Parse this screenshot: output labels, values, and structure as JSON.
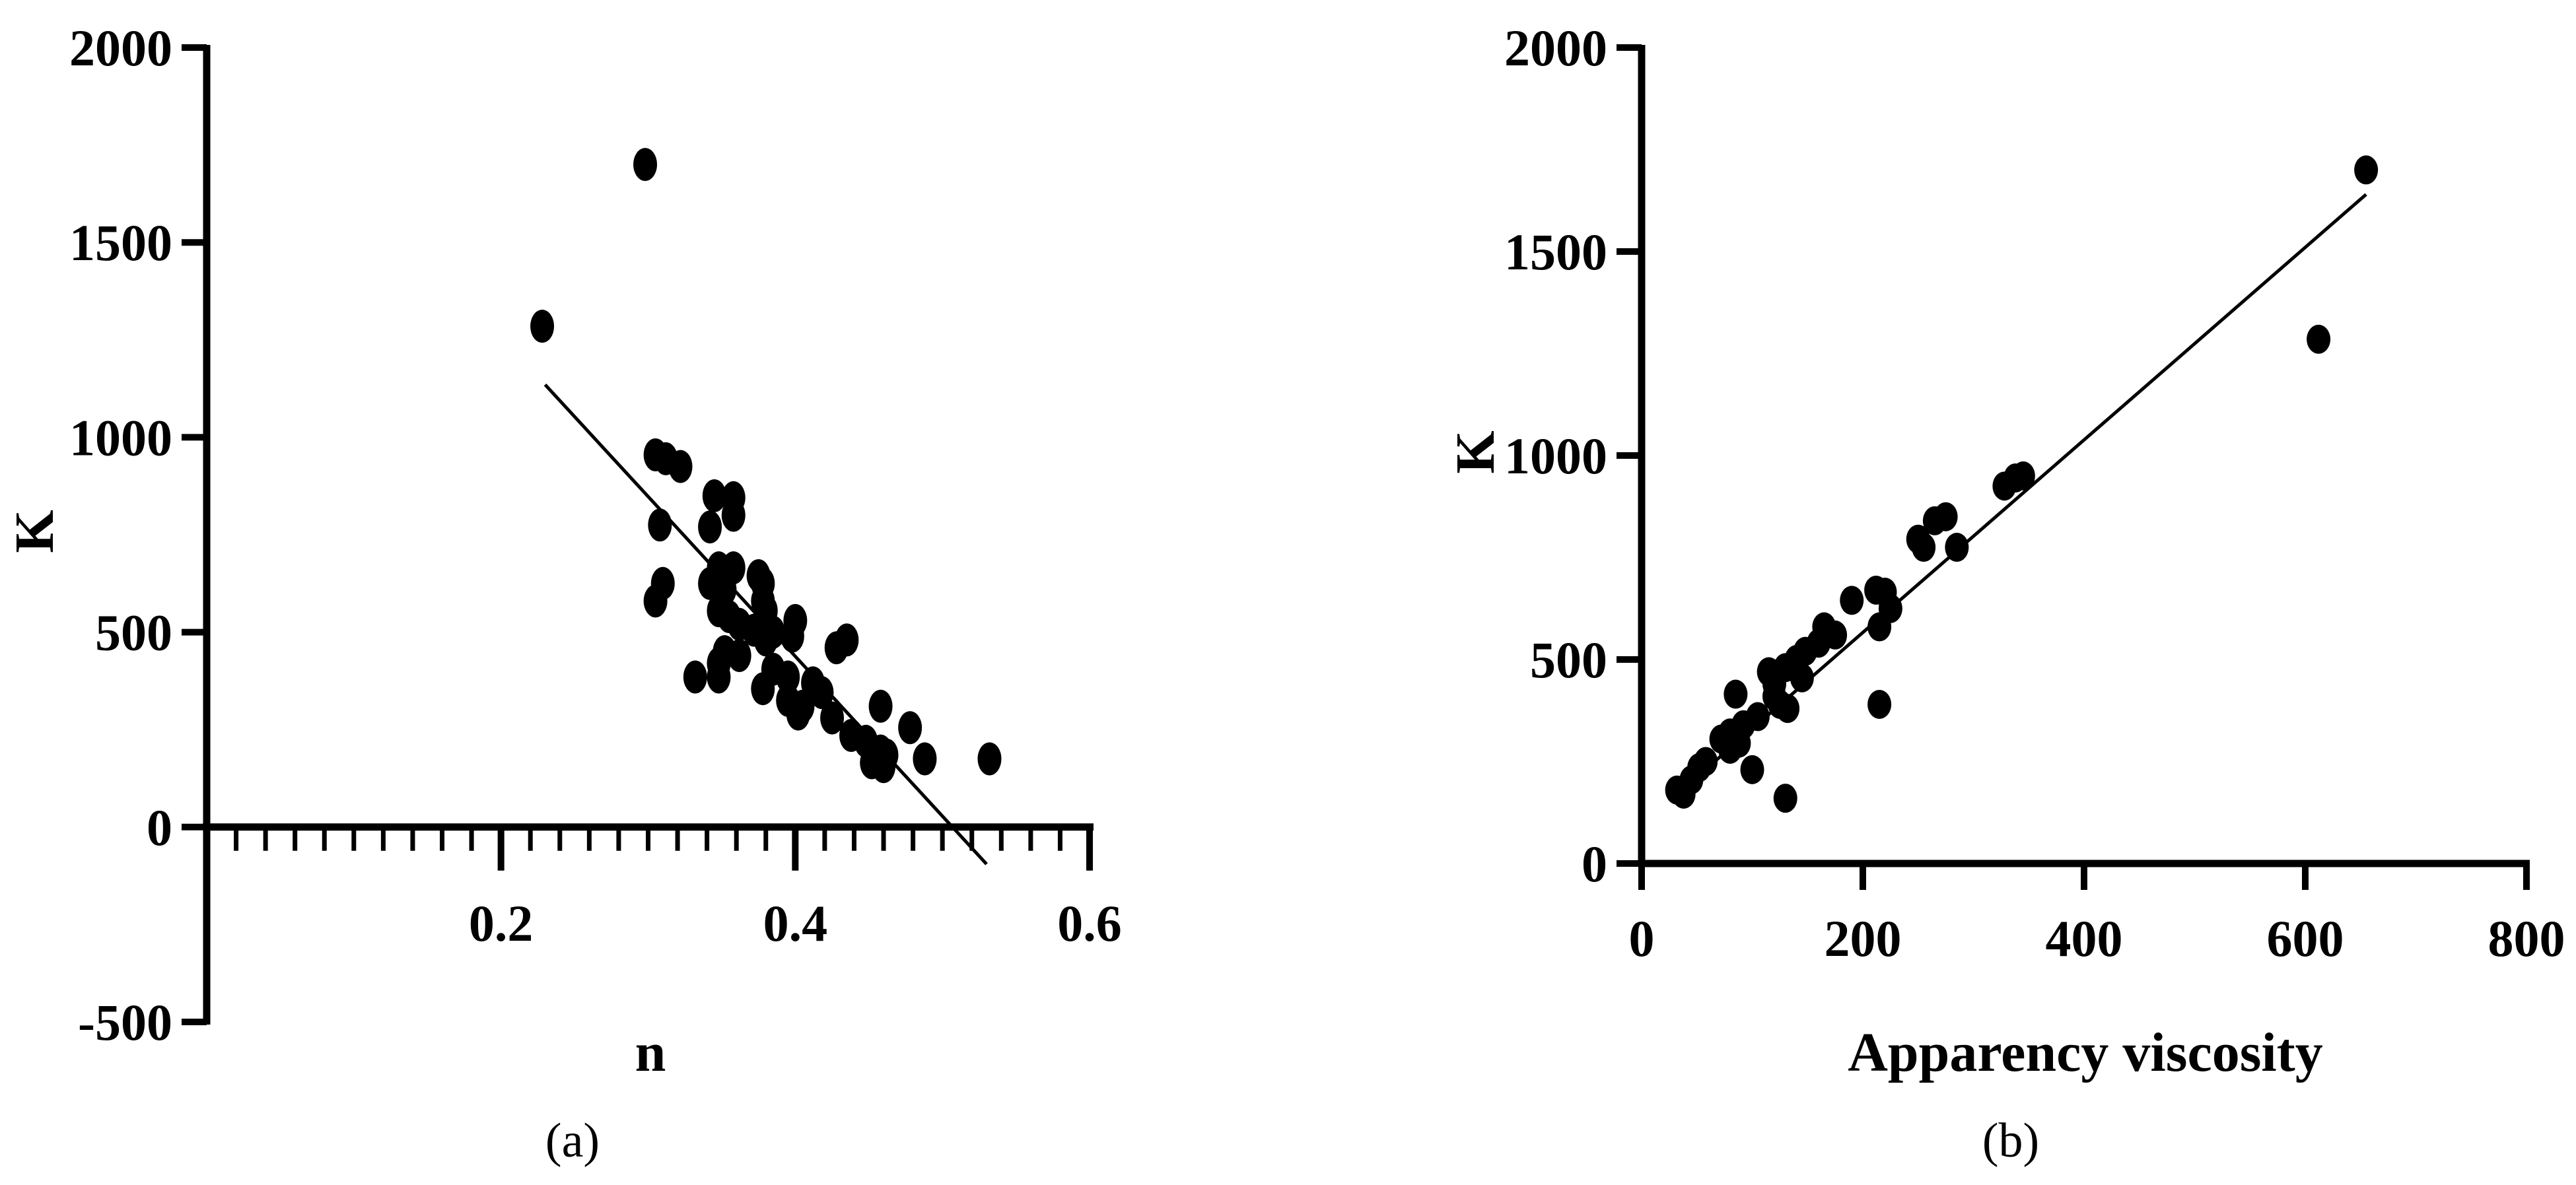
{
  "chart_data": [
    {
      "type": "scatter",
      "panel_label": "(a)",
      "xlabel": "n",
      "ylabel": "K",
      "xlim": [
        0,
        0.6
      ],
      "ylim": [
        -500,
        2000
      ],
      "xticks": [
        "0.2",
        "0.4",
        "0.6"
      ],
      "yticks": [
        "-500",
        "0",
        "500",
        "1000",
        "1500",
        "2000"
      ],
      "minor_xtick_step": 0.02,
      "trendline": {
        "x": [
          0.23,
          0.53
        ],
        "y": [
          1135,
          -95
        ]
      },
      "points": [
        [
          0.298,
          1700
        ],
        [
          0.228,
          1285
        ],
        [
          0.305,
          955
        ],
        [
          0.312,
          945
        ],
        [
          0.322,
          925
        ],
        [
          0.345,
          850
        ],
        [
          0.358,
          845
        ],
        [
          0.358,
          800
        ],
        [
          0.308,
          775
        ],
        [
          0.342,
          770
        ],
        [
          0.348,
          665
        ],
        [
          0.358,
          665
        ],
        [
          0.375,
          645
        ],
        [
          0.378,
          625
        ],
        [
          0.31,
          625
        ],
        [
          0.342,
          625
        ],
        [
          0.352,
          610
        ],
        [
          0.305,
          580
        ],
        [
          0.378,
          580
        ],
        [
          0.38,
          555
        ],
        [
          0.348,
          555
        ],
        [
          0.355,
          540
        ],
        [
          0.4,
          530
        ],
        [
          0.362,
          520
        ],
        [
          0.372,
          505
        ],
        [
          0.385,
          500
        ],
        [
          0.398,
          490
        ],
        [
          0.38,
          480
        ],
        [
          0.435,
          480
        ],
        [
          0.428,
          460
        ],
        [
          0.352,
          450
        ],
        [
          0.362,
          440
        ],
        [
          0.348,
          420
        ],
        [
          0.385,
          405
        ],
        [
          0.332,
          385
        ],
        [
          0.348,
          385
        ],
        [
          0.395,
          385
        ],
        [
          0.412,
          370
        ],
        [
          0.378,
          355
        ],
        [
          0.418,
          345
        ],
        [
          0.395,
          325
        ],
        [
          0.405,
          310
        ],
        [
          0.458,
          310
        ],
        [
          0.402,
          290
        ],
        [
          0.425,
          280
        ],
        [
          0.478,
          255
        ],
        [
          0.438,
          235
        ],
        [
          0.448,
          220
        ],
        [
          0.458,
          195
        ],
        [
          0.462,
          185
        ],
        [
          0.488,
          175
        ],
        [
          0.532,
          175
        ],
        [
          0.452,
          165
        ],
        [
          0.46,
          155
        ]
      ]
    },
    {
      "type": "scatter",
      "panel_label": "(b)",
      "xlabel": "Apparency viscosity",
      "ylabel": "K",
      "xlim": [
        0,
        800
      ],
      "ylim": [
        0,
        2000
      ],
      "xticks": [
        "0",
        "200",
        "400",
        "600",
        "800"
      ],
      "yticks": [
        "0",
        "500",
        "1000",
        "1500",
        "2000"
      ],
      "trendline": {
        "x": [
          30,
          655
        ],
        "y": [
          165,
          1640
        ]
      },
      "points": [
        [
          655,
          1700
        ],
        [
          612,
          1285
        ],
        [
          345,
          950
        ],
        [
          338,
          945
        ],
        [
          328,
          925
        ],
        [
          275,
          850
        ],
        [
          265,
          840
        ],
        [
          250,
          795
        ],
        [
          255,
          775
        ],
        [
          285,
          775
        ],
        [
          212,
          670
        ],
        [
          220,
          665
        ],
        [
          190,
          645
        ],
        [
          225,
          625
        ],
        [
          165,
          580
        ],
        [
          215,
          580
        ],
        [
          175,
          560
        ],
        [
          160,
          540
        ],
        [
          148,
          520
        ],
        [
          140,
          500
        ],
        [
          130,
          480
        ],
        [
          115,
          470
        ],
        [
          145,
          455
        ],
        [
          120,
          440
        ],
        [
          85,
          415
        ],
        [
          120,
          410
        ],
        [
          125,
          390
        ],
        [
          215,
          390
        ],
        [
          132,
          380
        ],
        [
          105,
          360
        ],
        [
          92,
          340
        ],
        [
          80,
          320
        ],
        [
          72,
          305
        ],
        [
          88,
          295
        ],
        [
          80,
          280
        ],
        [
          58,
          250
        ],
        [
          52,
          235
        ],
        [
          100,
          230
        ],
        [
          45,
          205
        ],
        [
          32,
          180
        ],
        [
          38,
          170
        ],
        [
          130,
          160
        ]
      ]
    }
  ]
}
